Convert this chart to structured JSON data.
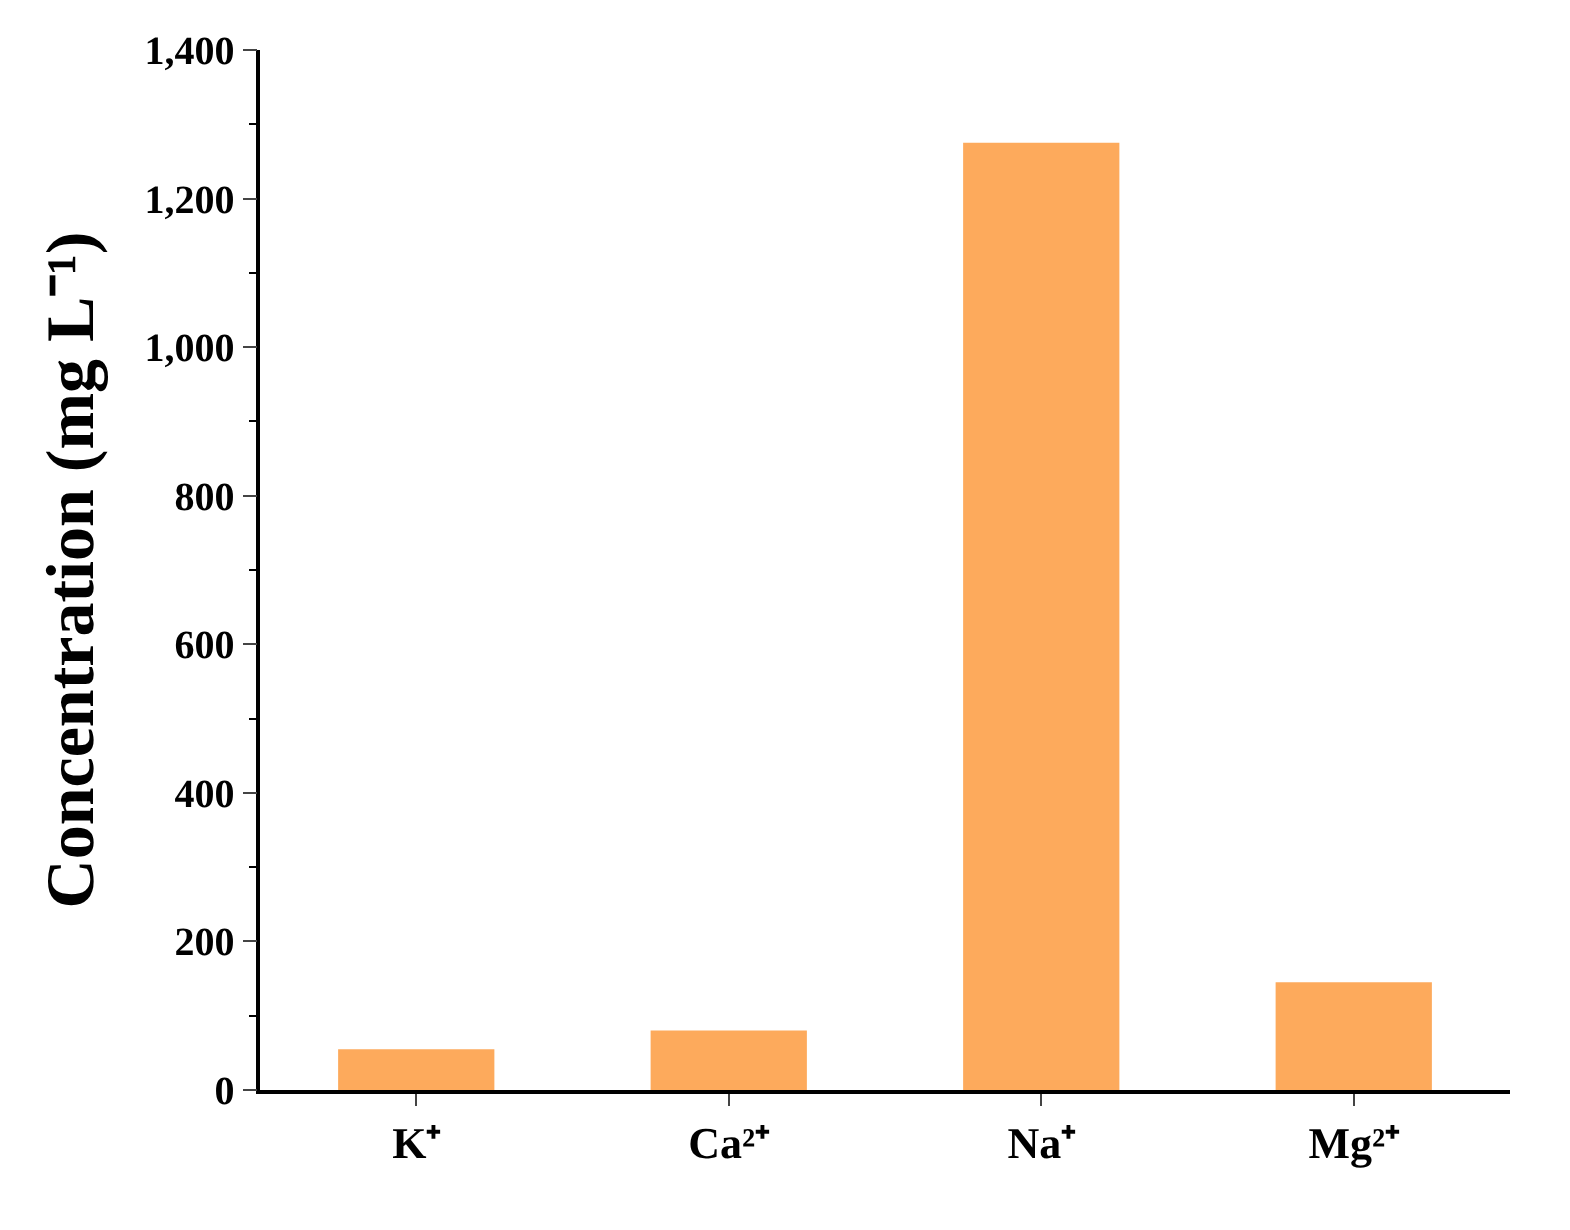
{
  "chart_data": {
    "type": "bar",
    "ylabel": "Concentration (mg L⁻¹)",
    "categories": [
      "K⁺",
      "Ca²⁺",
      "Na⁺",
      "Mg²⁺"
    ],
    "values": [
      55,
      80,
      1275,
      145
    ],
    "color": "#fdaa5c",
    "ylim": [
      0,
      1400
    ],
    "yticks": [
      {
        "value": 0,
        "label": "0"
      },
      {
        "value": 200,
        "label": "200"
      },
      {
        "value": 400,
        "label": "400"
      },
      {
        "value": 600,
        "label": "600"
      },
      {
        "value": 800,
        "label": "800"
      },
      {
        "value": 1000,
        "label": "1,000"
      },
      {
        "value": 1200,
        "label": "1,200"
      },
      {
        "value": 1400,
        "label": "1,400"
      }
    ]
  }
}
